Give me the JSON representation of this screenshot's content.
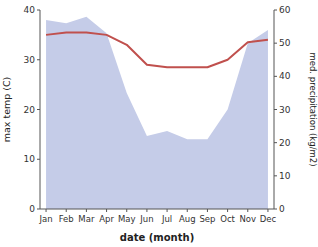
{
  "chart_data": {
    "type": "line",
    "x_label": "date (month)",
    "y_label": "max temp (C)",
    "y2_label": "med. precipitation (kg/m2)",
    "categories": [
      "Jan",
      "Feb",
      "Mar",
      "Apr",
      "May",
      "Jun",
      "Jul",
      "Aug",
      "Sep",
      "Oct",
      "Nov",
      "Dec"
    ],
    "series": [
      {
        "type": "area",
        "axis": "y2",
        "color": "#c5cce8",
        "values": [
          57,
          56,
          58,
          53,
          35,
          22,
          23.5,
          21,
          21,
          30,
          50,
          54
        ]
      },
      {
        "type": "line",
        "color": "#c0504d",
        "values": [
          35,
          35.5,
          35.5,
          35,
          33,
          29,
          28.5,
          28.5,
          28.5,
          30,
          33.5,
          34
        ]
      }
    ],
    "ylim": [
      0,
      40
    ],
    "yticks": [
      0,
      10,
      20,
      30,
      40
    ],
    "y2lim": [
      0,
      60
    ],
    "y2ticks": [
      0,
      10,
      20,
      30,
      40,
      50,
      60
    ]
  }
}
